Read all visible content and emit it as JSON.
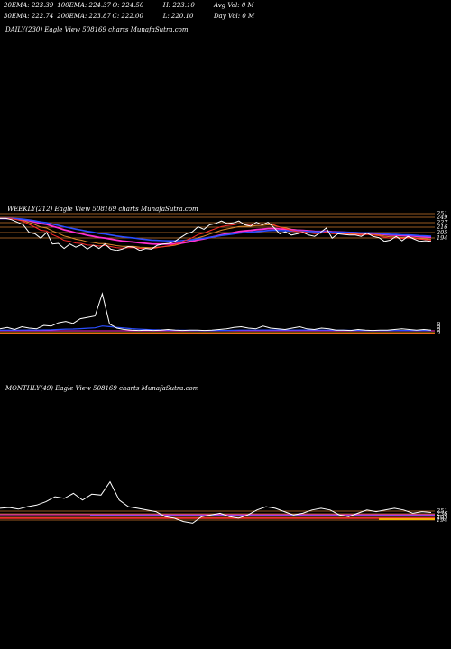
{
  "header": {
    "row1": [
      "20EMA: 223.39",
      "100EMA: 224.37",
      "O: 224.50",
      "H: 223.10",
      "Avg Vol: 0  M"
    ],
    "row2": [
      "30EMA: 222.74",
      "200EMA: 223.87",
      "C: 222.00",
      "L: 220.10",
      "Day Vol: 0  M"
    ]
  },
  "panels": {
    "daily": {
      "title": "DAILY(230) Eagle   View  508169 charts MunafaSutra.com"
    },
    "weekly": {
      "title": "WEEKLY(212) Eagle   View  508169 charts MunafaSutra.com"
    },
    "monthly": {
      "title": "MONTHLY(49) Eagle   View  508169 charts MunafaSutra.com"
    }
  },
  "colors": {
    "background": "#000000",
    "price": "#ffffff",
    "ema_blue": "#2a4dff",
    "ema_magenta": "#ff2fd0",
    "ema_orange": "#d9882a",
    "ema_red": "#ff2a2a",
    "yellow": "#ffd400",
    "grid": "#c8742a"
  },
  "chart_data": [
    {
      "type": "line",
      "panel": "weekly",
      "ylabels": [
        "251",
        "249",
        "227",
        "216",
        "205",
        "194"
      ],
      "series": [
        {
          "role": "price",
          "values": [
            246,
            246,
            244,
            240,
            236,
            224,
            222,
            215,
            224,
            206,
            207,
            199,
            206,
            201,
            205,
            198,
            204,
            199,
            206,
            198,
            196,
            198,
            202,
            201,
            196,
            199,
            198,
            204,
            206,
            207,
            210,
            216,
            222,
            225,
            233,
            229,
            236,
            238,
            242,
            238,
            239,
            242,
            236,
            234,
            240,
            236,
            240,
            232,
            222,
            225,
            220,
            222,
            224,
            220,
            218,
            224,
            231,
            215,
            222,
            221,
            220,
            220,
            218,
            223,
            218,
            216,
            210,
            212,
            218,
            211,
            218,
            214,
            210,
            211,
            210
          ]
        }
      ]
    },
    {
      "type": "line",
      "panel": "weekly-volume",
      "ylabels": [
        "0",
        "0",
        "0",
        "0"
      ],
      "series": [
        {
          "role": "volume",
          "values": [
            3,
            5,
            2,
            6,
            4,
            3,
            8,
            7,
            12,
            14,
            11,
            18,
            20,
            22,
            55,
            10,
            4,
            2,
            1,
            0.5,
            1,
            0.5,
            1,
            2,
            1,
            0.5,
            1,
            1,
            0.5,
            1,
            2,
            3,
            5,
            6,
            4,
            3,
            7,
            4,
            3,
            2,
            4,
            6,
            3,
            2,
            4,
            3,
            1,
            1,
            0.5,
            2,
            1,
            0.5,
            1,
            1,
            2,
            3,
            2,
            1,
            2,
            1
          ]
        }
      ]
    },
    {
      "type": "line",
      "panel": "monthly",
      "ylabels": [
        "251",
        "236",
        "205",
        "194"
      ],
      "series": [
        {
          "role": "price",
          "values": [
            248,
            249,
            247,
            250,
            252,
            256,
            262,
            260,
            266,
            258,
            265,
            264,
            280,
            258,
            250,
            248,
            246,
            244,
            238,
            236,
            232,
            230,
            238,
            240,
            242,
            238,
            236,
            240,
            246,
            250,
            248,
            244,
            240,
            242,
            246,
            248,
            246,
            240,
            238,
            242,
            246,
            244,
            246,
            248,
            246,
            242,
            244,
            243
          ]
        }
      ]
    }
  ]
}
